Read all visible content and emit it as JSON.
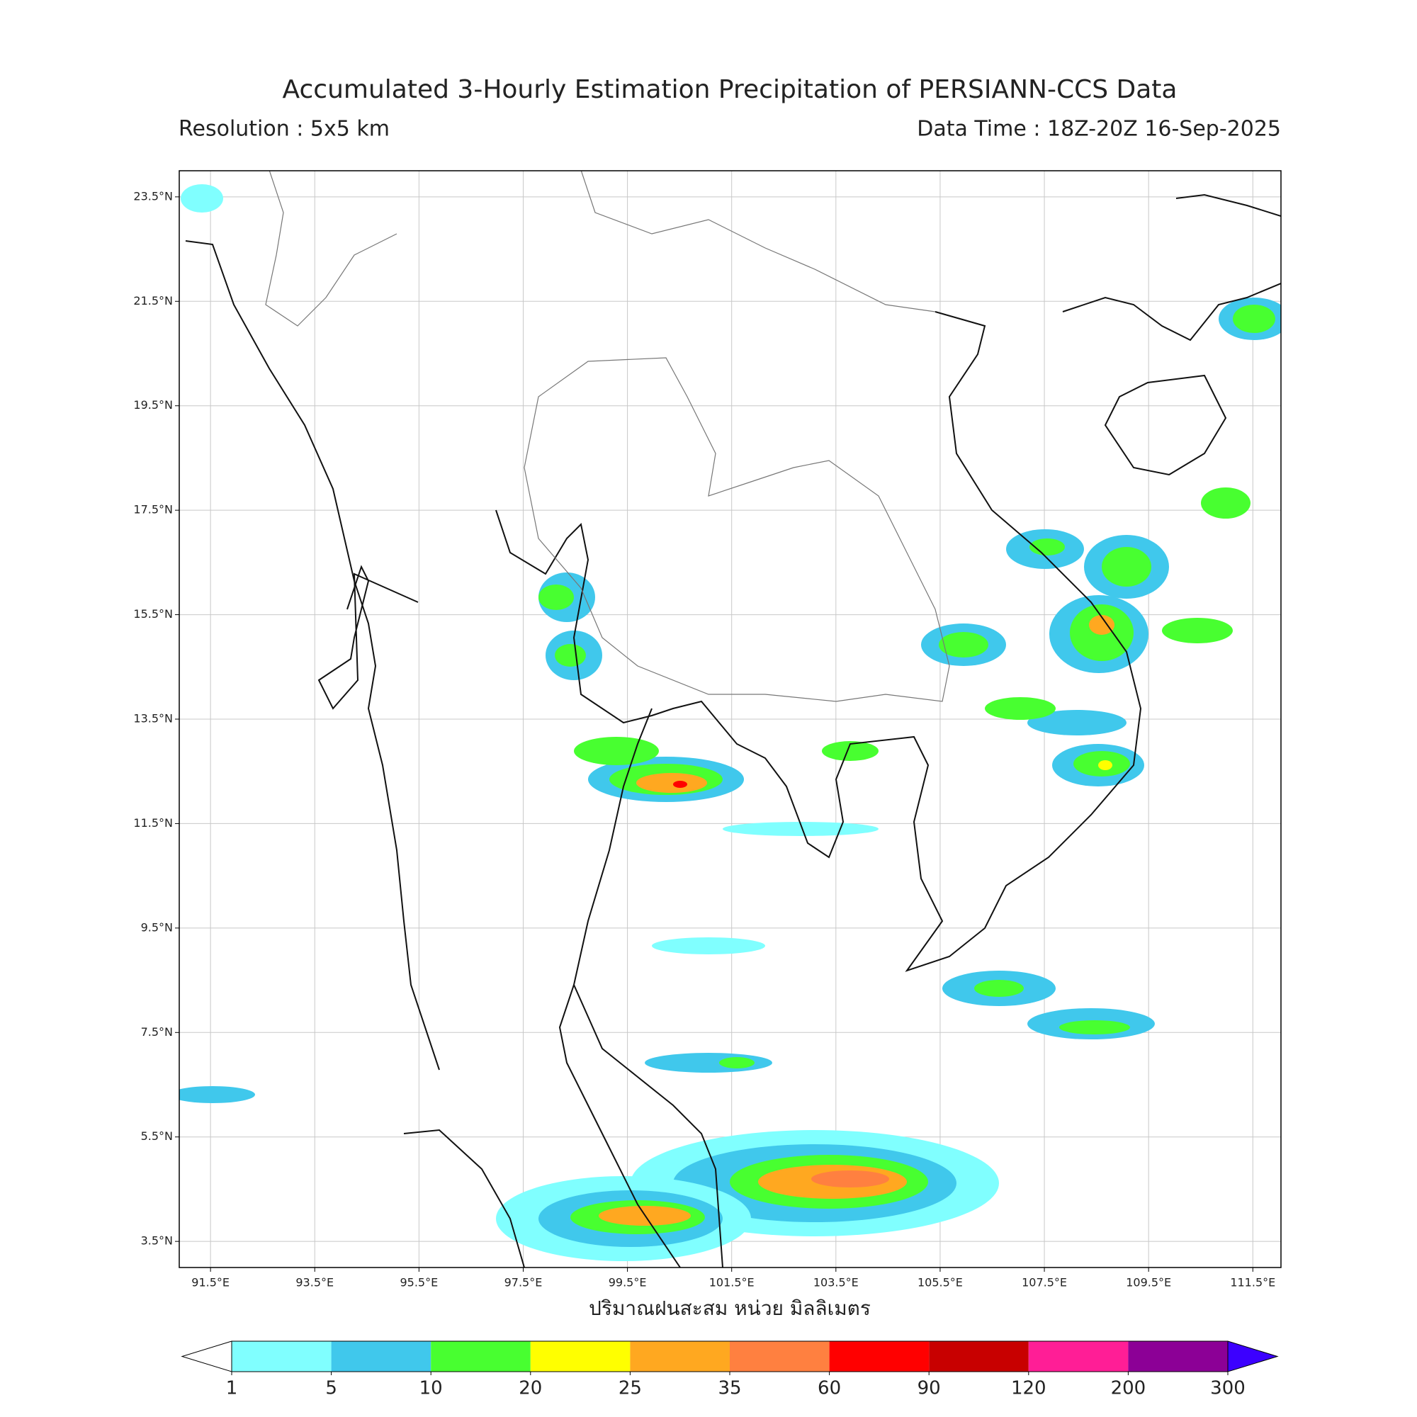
{
  "map": {
    "title": "Accumulated 3-Hourly Estimation Precipitation of PERSIANN-CCS Data",
    "resolution": "Resolution : 5x5 km",
    "data_time": "Data Time : 18Z-20Z 16-Sep-2025",
    "x_label": "ปริมาณฝนสะสม หน่วย มิลลิเมตร",
    "lon_range": [
      90.9,
      112.04
    ],
    "lat_range": [
      3.0,
      24.0
    ],
    "lon_ticks": [
      {
        "value": 91.5,
        "label": "91.5°E"
      },
      {
        "value": 93.5,
        "label": "93.5°E"
      },
      {
        "value": 95.5,
        "label": "95.5°E"
      },
      {
        "value": 97.5,
        "label": "97.5°E"
      },
      {
        "value": 99.5,
        "label": "99.5°E"
      },
      {
        "value": 101.5,
        "label": "101.5°E"
      },
      {
        "value": 103.5,
        "label": "103.5°E"
      },
      {
        "value": 105.5,
        "label": "105.5°E"
      },
      {
        "value": 107.5,
        "label": "107.5°E"
      },
      {
        "value": 109.5,
        "label": "109.5°E"
      },
      {
        "value": 111.5,
        "label": "111.5°E"
      }
    ],
    "lat_ticks": [
      {
        "value": 23.5,
        "label": "23.5°N"
      },
      {
        "value": 21.5,
        "label": "21.5°N"
      },
      {
        "value": 19.5,
        "label": "19.5°N"
      },
      {
        "value": 17.5,
        "label": "17.5°N"
      },
      {
        "value": 15.5,
        "label": "15.5°N"
      },
      {
        "value": 13.5,
        "label": "13.5°N"
      },
      {
        "value": 11.5,
        "label": "11.5°N"
      },
      {
        "value": 9.5,
        "label": "9.5°N"
      },
      {
        "value": 7.5,
        "label": "7.5°N"
      },
      {
        "value": 5.5,
        "label": "5.5°N"
      },
      {
        "value": 3.5,
        "label": "3.5°N"
      }
    ],
    "colorbar": {
      "levels": [
        1,
        5,
        10,
        20,
        25,
        35,
        60,
        90,
        120,
        200,
        300
      ],
      "colors": [
        "#80ffff",
        "#40c8ec",
        "#48ff30",
        "#ffff00",
        "#ffa820",
        "#ff8040",
        "#ff0000",
        "#c80000",
        "#ff1e96",
        "#8c0096"
      ],
      "under_color": "#ffffff",
      "over_color": "#3c00ff"
    }
  }
}
